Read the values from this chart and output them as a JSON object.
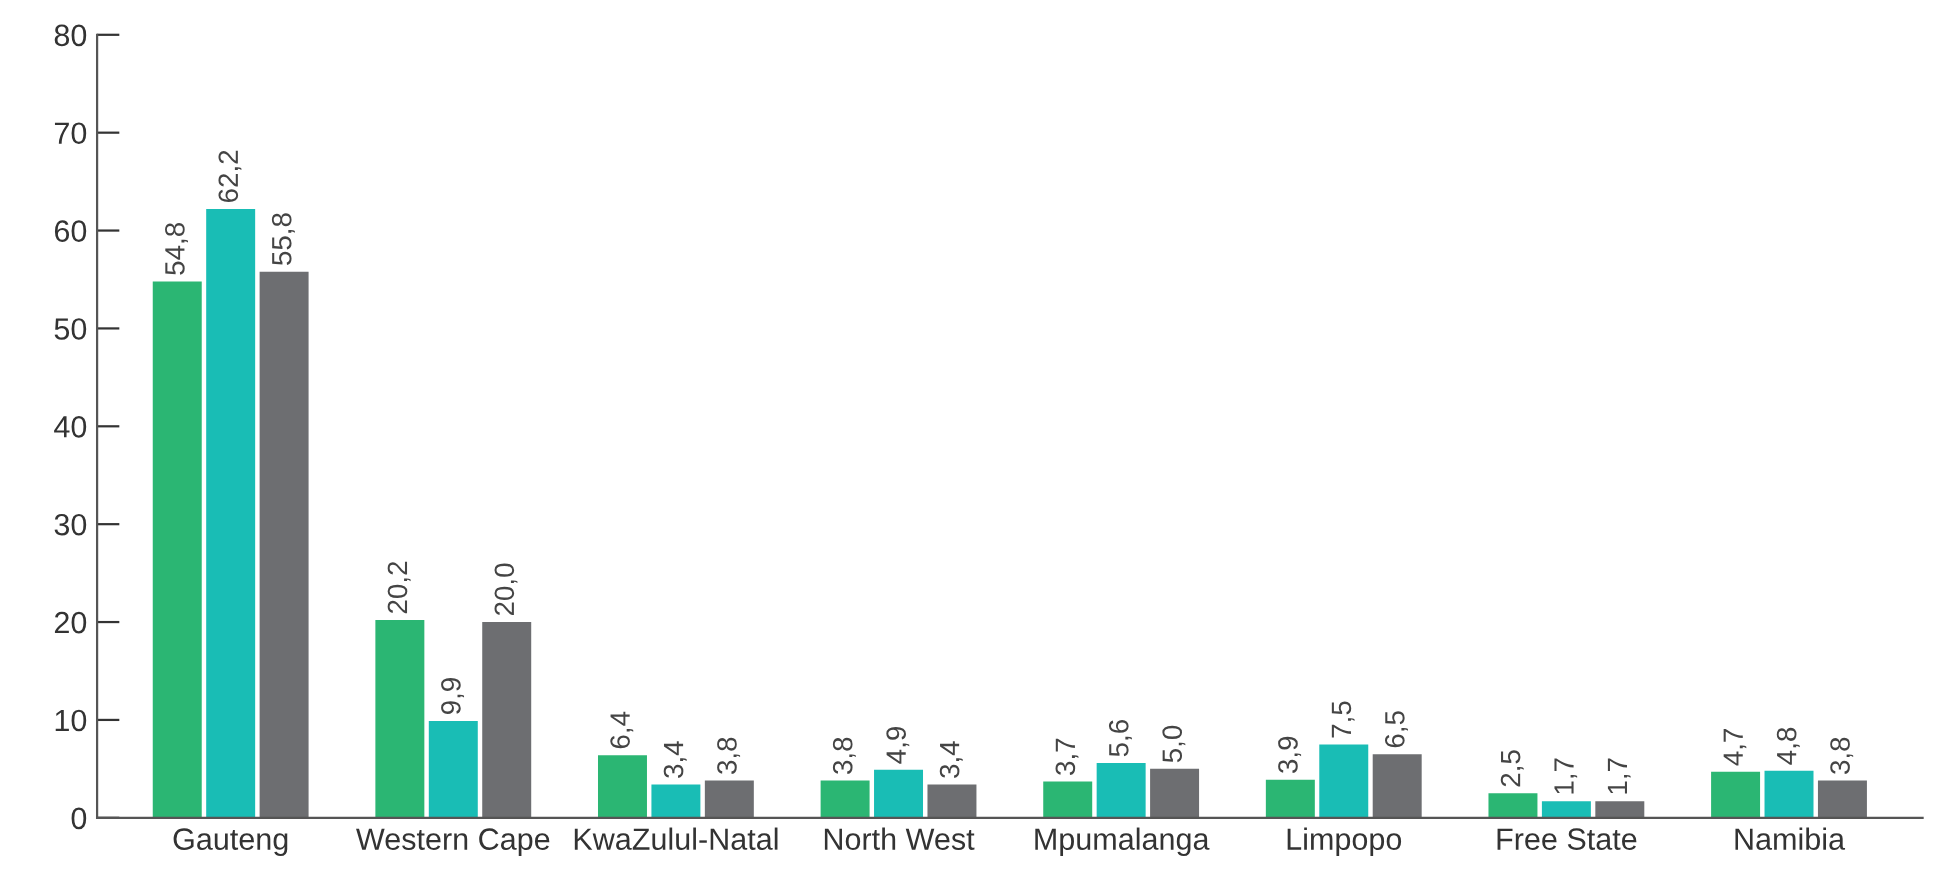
{
  "chart_data": {
    "type": "bar",
    "categories": [
      "Gauteng",
      "Western Cape",
      "KwaZulul-Natal",
      "North West",
      "Mpumalanga",
      "Limpopo",
      "Free State",
      "Namibia"
    ],
    "series": [
      {
        "color": "#2bb673",
        "values": [
          54.8,
          20.2,
          6.4,
          3.8,
          3.7,
          3.9,
          2.5,
          4.7
        ],
        "value_labels": [
          "54,8",
          "20,2",
          "6,4",
          "3,8",
          "3,7",
          "3,9",
          "2,5",
          "4,7"
        ]
      },
      {
        "color": "#19bdb5",
        "values": [
          62.2,
          9.9,
          3.4,
          4.9,
          5.6,
          7.5,
          1.7,
          4.8
        ],
        "value_labels": [
          "62,2",
          "9,9",
          "3,4",
          "4,9",
          "5,6",
          "7,5",
          "1,7",
          "4,8"
        ]
      },
      {
        "color": "#6d6e71",
        "values": [
          55.8,
          20.0,
          3.8,
          3.4,
          5.0,
          6.5,
          1.7,
          3.8
        ],
        "value_labels": [
          "55,8",
          "20,0",
          "3,8",
          "3,4",
          "5,0",
          "6,5",
          "1,7",
          "3,8"
        ]
      }
    ],
    "ylim": [
      0,
      80
    ],
    "yticks": [
      0,
      10,
      20,
      30,
      40,
      50,
      60,
      70,
      80
    ],
    "grid": false
  }
}
